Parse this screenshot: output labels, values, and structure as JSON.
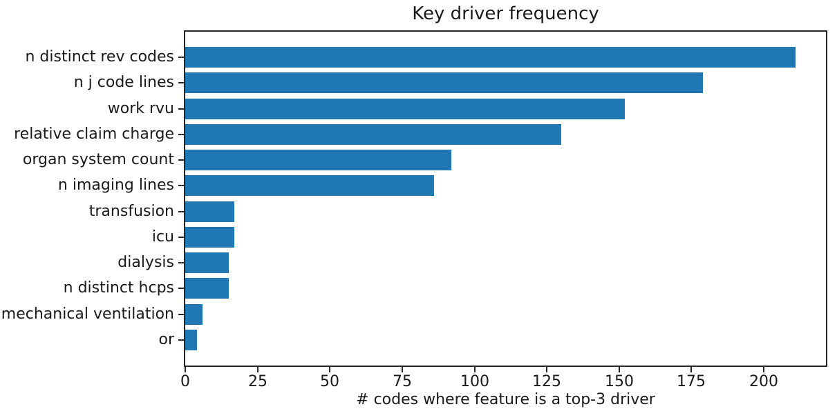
{
  "chart_data": {
    "type": "bar",
    "orientation": "horizontal",
    "title": "Key driver frequency",
    "xlabel": "# codes where feature is a top-3 driver",
    "ylabel": "",
    "categories": [
      "n distinct rev codes",
      "n j code lines",
      "work rvu",
      "relative claim charge",
      "organ system count",
      "n imaging lines",
      "transfusion",
      "icu",
      "dialysis",
      "n distinct hcps",
      "mechanical ventilation",
      "or"
    ],
    "values": [
      211,
      179,
      152,
      130,
      92,
      86,
      17,
      17,
      15,
      15,
      6,
      4
    ],
    "xticks": [
      0,
      25,
      50,
      75,
      100,
      125,
      150,
      175,
      200
    ],
    "xlim": [
      0,
      221.5
    ],
    "bar_color": "#1f77b4",
    "axis_color": "#262626",
    "text_color": "#1a1a1a",
    "background_color": "#ffffff",
    "grid": false,
    "legend": null
  }
}
